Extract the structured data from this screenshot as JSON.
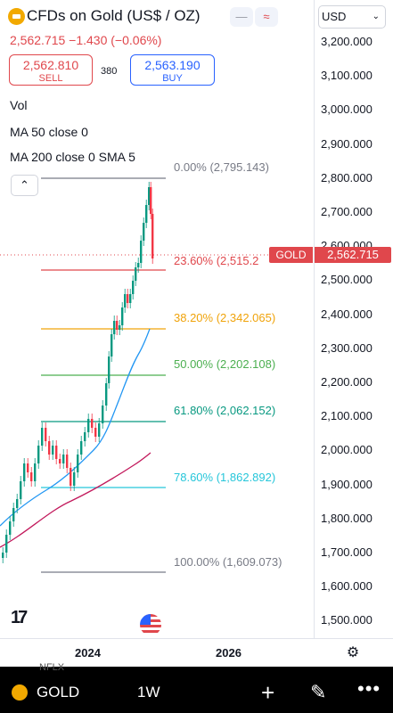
{
  "header": {
    "title": "CFDs on Gold (US$ / OZ)",
    "price_line": "2,562.715 −1.430 (−0.06%)",
    "minimize_icon": "minus-icon",
    "wave_icon": "wave-icon"
  },
  "trade": {
    "sell_price": "2,562.810",
    "sell_label": "SELL",
    "spread": "380",
    "buy_price": "2,563.190",
    "buy_label": "BUY"
  },
  "indicators": {
    "vol": "Vol",
    "ma50": "MA 50 close 0",
    "ma200": "MA 200 close 0 SMA 5"
  },
  "axis": {
    "currency": "USD",
    "ticks": [
      "3,200.000",
      "3,100.000",
      "3,000.000",
      "2,900.000",
      "2,800.000",
      "2,700.000",
      "2,600.000",
      "2,500.000",
      "2,400.000",
      "2,300.000",
      "2,200.000",
      "2,100.000",
      "2,000.000",
      "1,900.000",
      "1,800.000",
      "1,700.000",
      "1,600.000",
      "1,500.000"
    ],
    "symbol_tag": "GOLD",
    "price_tag": "2,562.715"
  },
  "fib": [
    {
      "label": "0.00% (2,795.143)",
      "color": "#787b86"
    },
    {
      "label": "23.60% (2,515.2",
      "color": "#e0474c"
    },
    {
      "label": "38.20% (2,342.065)",
      "color": "#f0a30a"
    },
    {
      "label": "50.00% (2,202.108)",
      "color": "#4caf50"
    },
    {
      "label": "61.80% (2,062.152)",
      "color": "#089981"
    },
    {
      "label": "78.60% (1,862.892)",
      "color": "#26c6da"
    },
    {
      "label": "100.00% (1,609.073)",
      "color": "#787b86"
    }
  ],
  "xaxis": {
    "ticks": [
      "2024",
      "2026"
    ]
  },
  "bottom_bar": {
    "symbol": "GOLD",
    "interval": "1W",
    "ghost_top": "NFLX",
    "ghost_bottom": "",
    "add_icon": "plus-icon",
    "draw_icon": "pen-icon",
    "more_icon": "more-icon"
  },
  "colors": {
    "up": "#089981",
    "down": "#f23645",
    "ma50": "#2196f3",
    "ma200": "#c2185b"
  }
}
